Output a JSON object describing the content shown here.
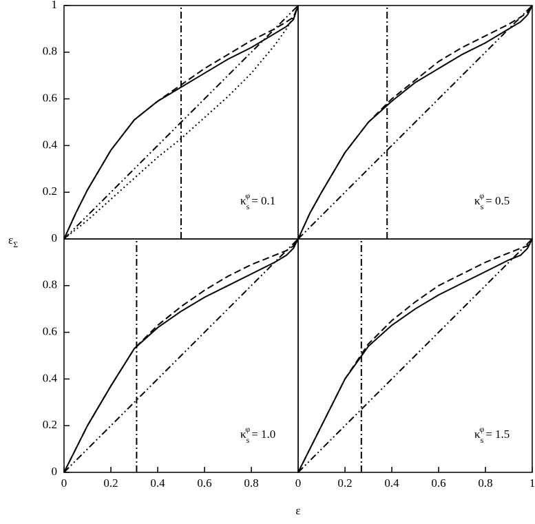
{
  "x_label": "ε",
  "y_label": {
    "symbol": "ε",
    "sub": "Σ"
  },
  "chart_data": [
    {
      "type": "line",
      "xlim": [
        0,
        1
      ],
      "ylim": [
        0,
        1
      ],
      "yticks": [
        0,
        0.2,
        0.4,
        0.6,
        0.8,
        1
      ],
      "annotation": {
        "symbol": "κ",
        "sub": "s",
        "sup": "φ",
        "text": "= 0.1"
      },
      "vline": 0.5,
      "x": [
        0,
        0.05,
        0.1,
        0.2,
        0.3,
        0.4,
        0.5,
        0.6,
        0.7,
        0.8,
        0.9,
        0.95,
        0.98,
        1
      ],
      "series": [
        {
          "style": "solid",
          "color": "#000000",
          "values": [
            0,
            0.11,
            0.21,
            0.38,
            0.51,
            0.59,
            0.65,
            0.71,
            0.77,
            0.82,
            0.88,
            0.91,
            0.94,
            1
          ]
        },
        {
          "style": "dashed",
          "color": "#000000",
          "values": [
            0,
            0.11,
            0.21,
            0.38,
            0.51,
            0.59,
            0.66,
            0.73,
            0.79,
            0.85,
            0.9,
            0.93,
            0.95,
            1
          ]
        },
        {
          "style": "dotted",
          "color": "#000000",
          "values": [
            0,
            0.04,
            0.08,
            0.17,
            0.26,
            0.35,
            0.43,
            0.52,
            0.61,
            0.71,
            0.83,
            0.9,
            0.95,
            1
          ]
        },
        {
          "style": "dashdotdot",
          "color": "#000000",
          "values": [
            0,
            0.05,
            0.1,
            0.2,
            0.3,
            0.4,
            0.5,
            0.6,
            0.7,
            0.8,
            0.9,
            0.95,
            0.98,
            1
          ]
        }
      ]
    },
    {
      "type": "line",
      "xlim": [
        0,
        1
      ],
      "ylim": [
        0,
        1
      ],
      "annotation": {
        "symbol": "κ",
        "sub": "s",
        "sup": "φ",
        "text": "= 0.5"
      },
      "vline": 0.38,
      "x": [
        0,
        0.05,
        0.1,
        0.2,
        0.3,
        0.4,
        0.5,
        0.6,
        0.7,
        0.8,
        0.9,
        0.95,
        0.98,
        1
      ],
      "series": [
        {
          "style": "solid",
          "color": "#000000",
          "values": [
            0,
            0.11,
            0.2,
            0.37,
            0.5,
            0.59,
            0.67,
            0.73,
            0.79,
            0.84,
            0.9,
            0.93,
            0.96,
            1
          ]
        },
        {
          "style": "dashed",
          "color": "#000000",
          "values": [
            0,
            0.11,
            0.2,
            0.37,
            0.5,
            0.6,
            0.68,
            0.76,
            0.82,
            0.87,
            0.92,
            0.95,
            0.97,
            1
          ]
        },
        {
          "style": "dashdotdot",
          "color": "#000000",
          "values": [
            0,
            0.05,
            0.1,
            0.2,
            0.3,
            0.4,
            0.5,
            0.6,
            0.7,
            0.8,
            0.9,
            0.95,
            0.98,
            1
          ]
        }
      ]
    },
    {
      "type": "line",
      "xlim": [
        0,
        1
      ],
      "ylim": [
        0,
        1
      ],
      "xticks": [
        0,
        0.2,
        0.4,
        0.6,
        0.8
      ],
      "yticks": [
        0,
        0.2,
        0.4,
        0.6,
        0.8
      ],
      "annotation": {
        "symbol": "κ",
        "sub": "s",
        "sup": "φ",
        "text": "= 1.0"
      },
      "vline": 0.31,
      "x": [
        0,
        0.05,
        0.1,
        0.2,
        0.3,
        0.4,
        0.5,
        0.6,
        0.7,
        0.8,
        0.9,
        0.95,
        0.98,
        1
      ],
      "series": [
        {
          "style": "solid",
          "color": "#000000",
          "values": [
            0,
            0.1,
            0.2,
            0.37,
            0.53,
            0.62,
            0.69,
            0.75,
            0.8,
            0.85,
            0.9,
            0.93,
            0.96,
            1
          ]
        },
        {
          "style": "dashed",
          "color": "#000000",
          "values": [
            0,
            0.1,
            0.2,
            0.37,
            0.53,
            0.63,
            0.71,
            0.78,
            0.84,
            0.89,
            0.93,
            0.95,
            0.97,
            1
          ]
        },
        {
          "style": "dashdotdot",
          "color": "#000000",
          "values": [
            0,
            0.05,
            0.1,
            0.2,
            0.3,
            0.4,
            0.5,
            0.6,
            0.7,
            0.8,
            0.9,
            0.95,
            0.98,
            1
          ]
        }
      ]
    },
    {
      "type": "line",
      "xlim": [
        0,
        1
      ],
      "ylim": [
        0,
        1
      ],
      "xticks": [
        0,
        0.2,
        0.4,
        0.6,
        0.8,
        1
      ],
      "annotation": {
        "symbol": "κ",
        "sub": "s",
        "sup": "φ",
        "text": "= 1.5"
      },
      "vline": 0.27,
      "x": [
        0,
        0.05,
        0.1,
        0.2,
        0.3,
        0.4,
        0.5,
        0.6,
        0.7,
        0.8,
        0.9,
        0.95,
        0.98,
        1
      ],
      "series": [
        {
          "style": "solid",
          "color": "#000000",
          "values": [
            0,
            0.1,
            0.2,
            0.4,
            0.54,
            0.63,
            0.7,
            0.76,
            0.81,
            0.86,
            0.91,
            0.93,
            0.96,
            1
          ]
        },
        {
          "style": "dashed",
          "color": "#000000",
          "values": [
            0,
            0.1,
            0.2,
            0.4,
            0.55,
            0.65,
            0.73,
            0.8,
            0.85,
            0.9,
            0.94,
            0.96,
            0.97,
            1
          ]
        },
        {
          "style": "dashdotdot",
          "color": "#000000",
          "values": [
            0,
            0.05,
            0.1,
            0.2,
            0.3,
            0.4,
            0.5,
            0.6,
            0.7,
            0.8,
            0.9,
            0.95,
            0.98,
            1
          ]
        }
      ]
    }
  ]
}
